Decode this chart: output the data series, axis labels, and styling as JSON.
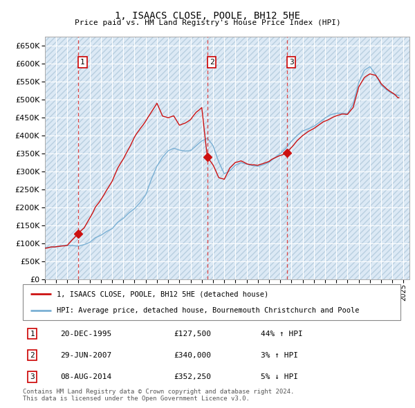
{
  "title": "1, ISAACS CLOSE, POOLE, BH12 5HE",
  "subtitle": "Price paid vs. HM Land Registry's House Price Index (HPI)",
  "ylim": [
    0,
    675000
  ],
  "yticks": [
    0,
    50000,
    100000,
    150000,
    200000,
    250000,
    300000,
    350000,
    400000,
    450000,
    500000,
    550000,
    600000,
    650000
  ],
  "xlim_start": 1993.0,
  "xlim_end": 2025.5,
  "bg_color": "#dce9f5",
  "hatch_color": "#b8cfe0",
  "grid_color": "#ffffff",
  "hpi_color": "#7ab0d4",
  "price_color": "#cc1111",
  "marker_line_color": "#dd4444",
  "legend_label_price": "1, ISAACS CLOSE, POOLE, BH12 5HE (detached house)",
  "legend_label_hpi": "HPI: Average price, detached house, Bournemouth Christchurch and Poole",
  "transaction_labels": [
    "1",
    "2",
    "3"
  ],
  "transaction_dates_decimal": [
    1995.97,
    2007.49,
    2014.58
  ],
  "transaction_prices": [
    127500,
    340000,
    352250
  ],
  "transaction_info": [
    {
      "num": "1",
      "date": "20-DEC-1995",
      "price": "£127,500",
      "change": "44% ↑ HPI"
    },
    {
      "num": "2",
      "date": "29-JUN-2007",
      "price": "£340,000",
      "change": "3% ↑ HPI"
    },
    {
      "num": "3",
      "date": "08-AUG-2014",
      "price": "£352,250",
      "change": "5% ↓ HPI"
    }
  ],
  "footnote": "Contains HM Land Registry data © Crown copyright and database right 2024.\nThis data is licensed under the Open Government Licence v3.0."
}
